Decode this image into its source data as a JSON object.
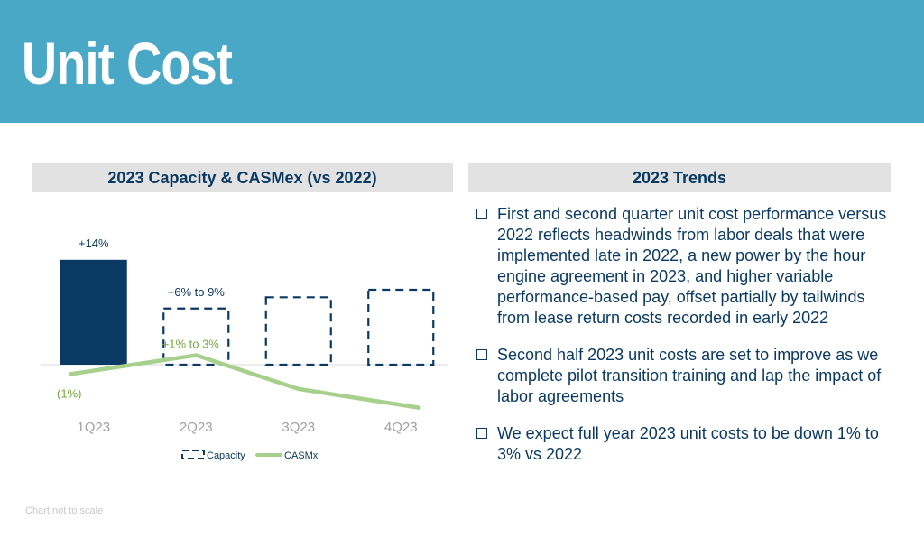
{
  "title": "Unit Cost",
  "chart_panel": {
    "header": "2023 Capacity & CASMex (vs 2022)"
  },
  "trends_panel": {
    "header": "2023 Trends",
    "bullets": [
      "First and second quarter unit cost performance versus 2022 reflects headwinds from labor deals that were implemented late in 2022, a new power by the hour engine agreement in 2023, and higher variable performance-based pay, offset partially by tailwinds from lease return costs recorded in early 2022",
      "Second half 2023 unit costs are set to improve as we complete pilot transition training and lap the impact of labor agreements",
      "We expect full year 2023 unit costs to be down 1% to 3% vs 2022"
    ]
  },
  "footnote": "Chart not to scale",
  "colors": {
    "banner": "#4aa8c7",
    "navy": "#0a3a63",
    "casm_green": "#a8d08d",
    "label_green": "#7aa83e",
    "header_gray": "#e2e2e2"
  },
  "chart_data": {
    "type": "bar",
    "title": "",
    "categories": [
      "1Q23",
      "2Q23",
      "3Q23",
      "4Q23"
    ],
    "series": [
      {
        "name": "Capacity",
        "kind": "bar",
        "values": [
          14,
          7.5,
          9,
          10
        ],
        "style": [
          "solid",
          "dashed",
          "dashed",
          "dashed"
        ],
        "labels": [
          "+14%",
          "+6% to 9%",
          "",
          ""
        ]
      },
      {
        "name": "CASMx",
        "kind": "line",
        "values": [
          -1,
          1.5,
          -3,
          -5.5
        ],
        "labels": [
          "(1%)",
          "+1% to 3%",
          "",
          ""
        ]
      }
    ],
    "legend": "bottom",
    "note": "Chart not to scale"
  }
}
